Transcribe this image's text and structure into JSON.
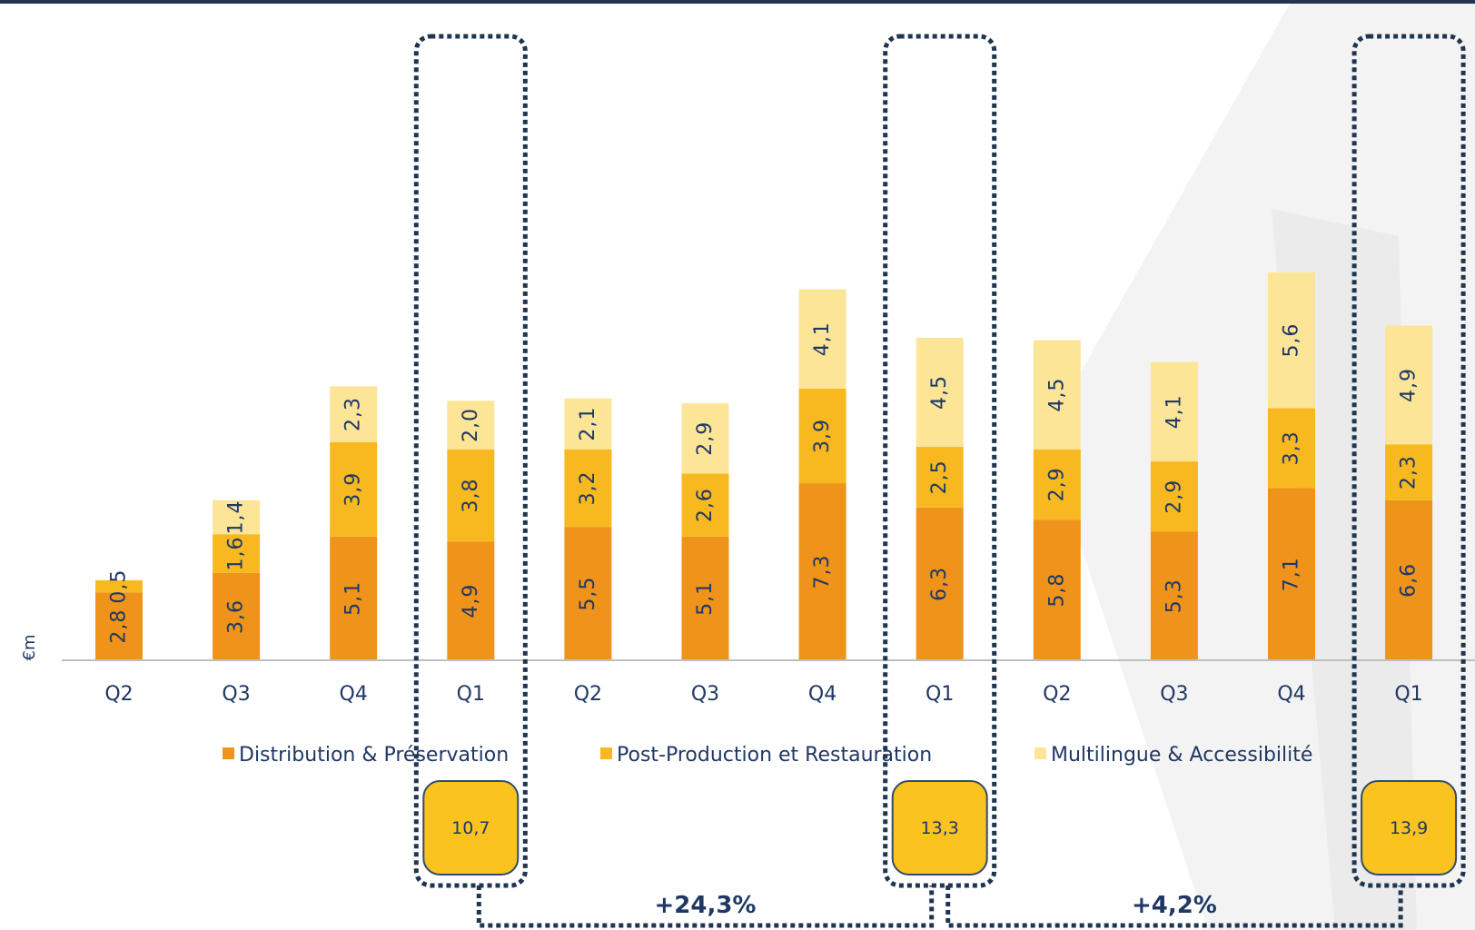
{
  "chart_data": {
    "type": "bar",
    "stacked": true,
    "unit_label": "€m",
    "categories": [
      "Q2",
      "Q3",
      "Q4",
      "Q1",
      "Q2",
      "Q3",
      "Q4",
      "Q1",
      "Q2",
      "Q3",
      "Q4",
      "Q1"
    ],
    "series": [
      {
        "name": "Distribution & Préservation",
        "color": "#f0931a",
        "values": [
          2.8,
          3.6,
          5.1,
          4.9,
          5.5,
          5.1,
          7.3,
          6.3,
          5.8,
          5.3,
          7.1,
          6.6
        ],
        "labels": [
          "2,8",
          "3,6",
          "5,1",
          "4,9",
          "5,5",
          "5,1",
          "7,3",
          "6,3",
          "5,8",
          "5,3",
          "7,1",
          "6,6"
        ]
      },
      {
        "name": "Post-Production et Restauration",
        "color": "#f8b920",
        "values": [
          0.5,
          1.6,
          3.9,
          3.8,
          3.2,
          2.6,
          3.9,
          2.5,
          2.9,
          2.9,
          3.3,
          2.3
        ],
        "labels": [
          "0,5",
          "1,6",
          "3,9",
          "3,8",
          "3,2",
          "2,6",
          "3,9",
          "2,5",
          "2,9",
          "2,9",
          "3,3",
          "2,3"
        ]
      },
      {
        "name": "Multilingue & Accessibilité",
        "color": "#fde597",
        "values": [
          0,
          1.4,
          2.3,
          2.0,
          2.1,
          2.9,
          4.1,
          4.5,
          4.5,
          4.1,
          5.6,
          4.9
        ],
        "labels": [
          "",
          "1,4",
          "2,3",
          "2,0",
          "2,1",
          "2,9",
          "4,1",
          "4,5",
          "4,5",
          "4,1",
          "5,6",
          "4,9"
        ]
      }
    ],
    "ylim": [
      0,
      17
    ],
    "legend_position": "bottom",
    "grid": false,
    "highlights": [
      {
        "category_index": 3,
        "total": "10,7"
      },
      {
        "category_index": 7,
        "total": "13,3"
      },
      {
        "category_index": 11,
        "total": "13,9"
      }
    ],
    "growth": [
      {
        "from_index": 3,
        "to_index": 7,
        "label": "+24,3%"
      },
      {
        "from_index": 7,
        "to_index": 11,
        "label": "+4,2%"
      }
    ]
  },
  "colors": {
    "text": "#1f3864",
    "frame": "#1f3550",
    "total_box": "#fbc31f",
    "axis": "#bfbfbf",
    "background_watermark": "#f2f2f2"
  }
}
